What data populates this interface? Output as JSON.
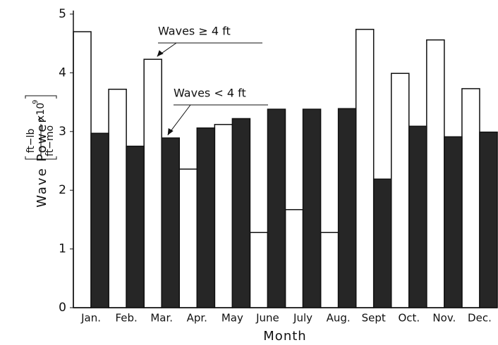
{
  "chart_data": {
    "type": "bar",
    "ylabel": "Wave Power",
    "y_unit": {
      "numerator": "ft−lb",
      "denominator": "ft−mo",
      "multiplier": "x10",
      "exponent": "9"
    },
    "xlabel": "Month",
    "categories": [
      "Jan.",
      "Feb.",
      "Mar.",
      "Apr.",
      "May",
      "June",
      "July",
      "Aug.",
      "Sept",
      "Oct.",
      "Nov.",
      "Dec."
    ],
    "series": [
      {
        "name": "Waves ≥ 4 ft",
        "color": "#ffffff",
        "values": [
          4.7,
          3.72,
          4.23,
          2.36,
          3.12,
          1.28,
          1.67,
          1.28,
          4.74,
          3.99,
          4.56,
          3.73
        ]
      },
      {
        "name": "Waves < 4 ft",
        "color": "#262626",
        "values": [
          2.97,
          2.75,
          2.89,
          3.06,
          3.22,
          3.38,
          3.38,
          3.39,
          2.19,
          3.09,
          2.91,
          2.99
        ]
      }
    ],
    "ylim": [
      0,
      5
    ],
    "yticks": [
      0,
      1,
      2,
      3,
      4,
      5
    ]
  }
}
